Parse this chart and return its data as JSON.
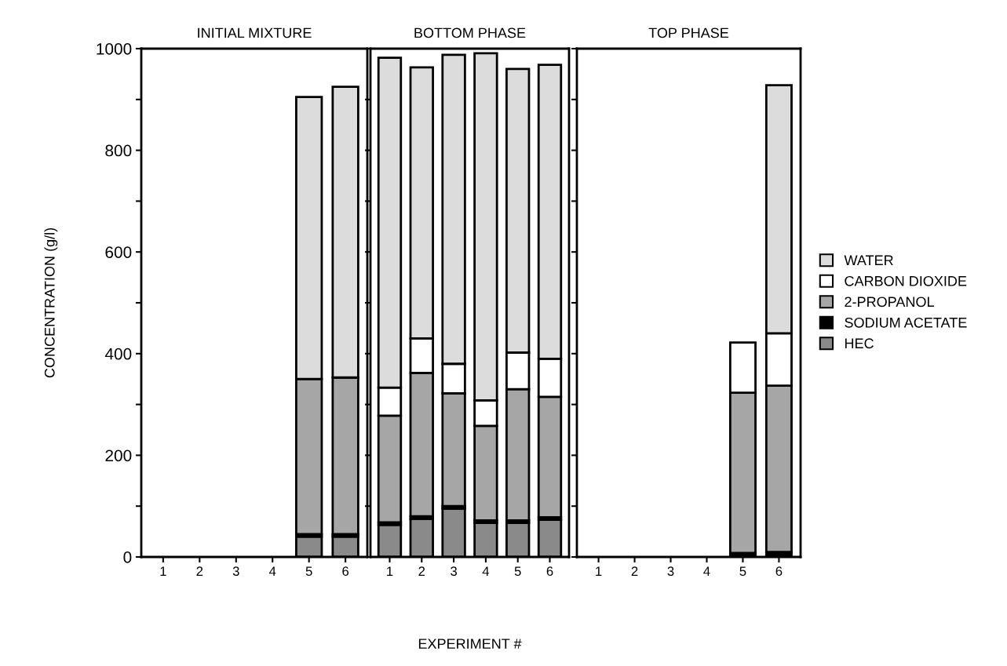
{
  "chart_data": [
    {
      "type": "bar",
      "title": "INITIAL MIXTURE",
      "ylabel": "CONCENTRATION (g/l)",
      "stacked": true,
      "categories": [
        "1",
        "2",
        "3",
        "4",
        "5",
        "6"
      ],
      "ylim": [
        0,
        1000
      ],
      "yticks": [
        0,
        {
          "value": 100,
          "label": null
        },
        200,
        {
          "value": 300,
          "label": null
        },
        400,
        {
          "value": 500,
          "label": null
        },
        600,
        {
          "value": 700,
          "label": null
        },
        800,
        {
          "value": 900,
          "label": null
        },
        1000
      ],
      "grid": false,
      "series": [
        {
          "color": "#8a8a8a",
          "values": [
            null,
            null,
            null,
            null,
            40,
            40
          ]
        },
        {
          "color": "#000000",
          "values": [
            null,
            null,
            null,
            null,
            5,
            5
          ]
        },
        {
          "color": "#a6a6a6",
          "values": [
            null,
            null,
            null,
            null,
            305,
            308
          ]
        },
        {
          "color": "#dcdcdc",
          "values": [
            null,
            null,
            null,
            null,
            555,
            572
          ]
        }
      ]
    },
    {
      "type": "bar",
      "title": "BOTTOM PHASE",
      "xlabel": "EXPERIMENT #",
      "stacked": true,
      "categories": [
        "1",
        "2",
        "3",
        "4",
        "5",
        "6"
      ],
      "ylim": [
        0,
        1000
      ],
      "tick_labels": "x",
      "grid": false,
      "series": [
        {
          "color": "#8a8a8a",
          "values": [
            63,
            75,
            95,
            67,
            67,
            73
          ]
        },
        {
          "color": "#000000",
          "values": [
            5,
            5,
            5,
            5,
            5,
            5
          ]
        },
        {
          "color": "#a6a6a6",
          "values": [
            210,
            282,
            222,
            186,
            258,
            237
          ]
        },
        {
          "color": "#ffffff",
          "values": [
            55,
            68,
            58,
            50,
            72,
            75
          ]
        },
        {
          "color": "#dcdcdc",
          "values": [
            649,
            533,
            608,
            683,
            558,
            578
          ]
        }
      ]
    },
    {
      "type": "bar",
      "title": "TOP PHASE",
      "stacked": true,
      "categories": [
        "1",
        "2",
        "3",
        "4",
        "5",
        "6"
      ],
      "ylim": [
        0,
        1000
      ],
      "tick_labels": "x",
      "grid": false,
      "legend": "right",
      "series": [
        {
          "name": "HEC",
          "color": "#8a8a8a",
          "values": [
            null,
            null,
            null,
            null,
            null,
            null
          ]
        },
        {
          "name": "SODIUM ACETATE",
          "color": "#000000",
          "values": [
            null,
            null,
            null,
            null,
            8,
            10
          ]
        },
        {
          "name": "2-PROPANOL",
          "color": "#a6a6a6",
          "values": [
            null,
            null,
            null,
            null,
            315,
            327
          ]
        },
        {
          "name": "CARBON DIOXIDE",
          "color": "#ffffff",
          "values": [
            null,
            null,
            null,
            null,
            99,
            103
          ]
        },
        {
          "name": "WATER",
          "color": "#dcdcdc",
          "values": [
            null,
            null,
            null,
            null,
            null,
            488
          ]
        }
      ]
    }
  ]
}
